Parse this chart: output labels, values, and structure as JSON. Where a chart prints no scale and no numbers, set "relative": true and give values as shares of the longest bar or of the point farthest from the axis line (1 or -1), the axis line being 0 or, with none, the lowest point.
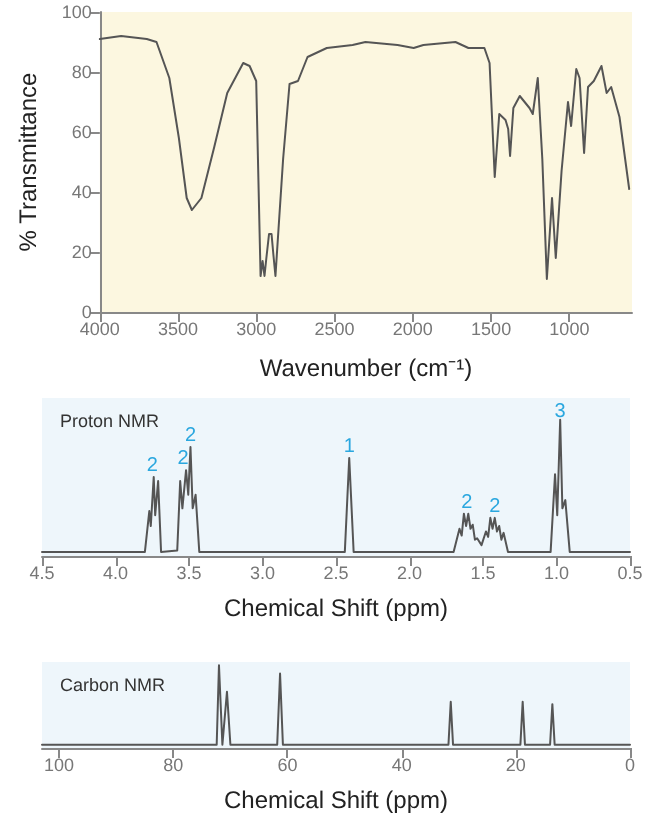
{
  "chart_data": [
    {
      "type": "line",
      "xlabel": "Wavenumber (cm⁻¹)",
      "ylabel": "% Transmittance",
      "xlim": [
        4000,
        600
      ],
      "xticks": [
        4000,
        3500,
        3000,
        2500,
        2000,
        1500,
        1000
      ],
      "ylim": [
        0,
        100
      ],
      "yticks": [
        0,
        20,
        40,
        60,
        80,
        100
      ],
      "grid": false,
      "marker": "none",
      "series": [
        {
          "color": "#555555",
          "x": [
            4000,
            3864,
            3700,
            3638,
            3556,
            3495,
            3445,
            3412,
            3351,
            3269,
            3186,
            3084,
            3043,
            3001,
            2973,
            2960,
            2948,
            2936,
            2919,
            2903,
            2891,
            2878,
            2858,
            2829,
            2788,
            2734,
            2673,
            2550,
            2385,
            2303,
            2098,
            1995,
            1933,
            1728,
            1645,
            1543,
            1510,
            1477,
            1448,
            1408,
            1391,
            1379,
            1358,
            1317,
            1255,
            1234,
            1202,
            1173,
            1144,
            1111,
            1087,
            1050,
            1009,
            989,
            956,
            935,
            906,
            881,
            844,
            795,
            762,
            733,
            680,
            618
          ],
          "values": [
            91,
            92,
            91,
            90,
            78,
            58,
            38,
            34,
            38,
            55,
            73,
            83,
            82,
            77,
            12,
            17,
            12,
            18,
            26,
            26,
            19,
            12,
            28,
            51,
            76,
            77,
            85,
            88,
            89,
            90,
            89,
            88,
            89,
            90,
            88,
            88,
            83,
            45,
            66,
            64,
            61,
            52,
            68,
            72,
            68,
            66,
            78,
            51,
            11,
            38,
            18,
            47,
            70,
            62,
            81,
            78,
            53,
            75,
            77,
            82,
            73,
            75,
            65,
            41
          ]
        }
      ]
    },
    {
      "type": "line",
      "title": "Proton NMR",
      "xlabel": "Chemical Shift (ppm)",
      "xlim": [
        4.5,
        0.5
      ],
      "xticks": [
        4.5,
        {
          "value": 4,
          "label": "4.0"
        },
        3.5,
        {
          "value": 3,
          "label": "3.0"
        },
        2.5,
        {
          "value": 2,
          "label": "2.0"
        },
        1.5,
        {
          "value": 1,
          "label": "1.0"
        },
        0.5
      ],
      "relative": true,
      "tick_labels": "x",
      "grid": false,
      "marker": "none",
      "annotations": [
        {
          "text": "2",
          "x": 3.75,
          "y": 0.66
        },
        {
          "text": "2",
          "x": 3.54,
          "y": 0.71
        },
        {
          "text": "2",
          "x": 3.49,
          "y": 0.88
        },
        {
          "text": "1",
          "x": 2.41,
          "y": 0.8
        },
        {
          "text": "2",
          "x": 1.61,
          "y": 0.39
        },
        {
          "text": "2",
          "x": 1.42,
          "y": 0.36
        },
        {
          "text": "3",
          "x": 0.975,
          "y": 1.06
        }
      ],
      "series": [
        {
          "color": "#555555",
          "x": [
            4.5,
            3.8,
            3.77,
            3.76,
            3.74,
            3.73,
            3.71,
            3.69,
            3.58,
            3.56,
            3.545,
            3.52,
            3.505,
            3.49,
            3.475,
            3.455,
            3.43,
            2.44,
            2.41,
            2.38,
            1.7,
            1.66,
            1.645,
            1.63,
            1.615,
            1.6,
            1.585,
            1.57,
            1.555,
            1.54,
            1.51,
            1.48,
            1.465,
            1.45,
            1.435,
            1.42,
            1.405,
            1.39,
            1.375,
            1.36,
            1.33,
            1.04,
            1.01,
            0.995,
            0.975,
            0.96,
            0.94,
            0.91,
            0.5
          ],
          "values": [
            0.03,
            0.03,
            0.33,
            0.22,
            0.58,
            0.3,
            0.55,
            0.03,
            0.04,
            0.55,
            0.35,
            0.63,
            0.45,
            0.8,
            0.35,
            0.45,
            0.03,
            0.03,
            0.72,
            0.03,
            0.03,
            0.2,
            0.15,
            0.31,
            0.22,
            0.31,
            0.2,
            0.23,
            0.12,
            0.13,
            0.08,
            0.18,
            0.14,
            0.28,
            0.2,
            0.28,
            0.18,
            0.22,
            0.12,
            0.17,
            0.03,
            0.03,
            0.6,
            0.3,
            1,
            0.35,
            0.41,
            0.03,
            0.03
          ]
        }
      ]
    },
    {
      "type": "line",
      "title": "Carbon NMR",
      "xlabel": "Chemical Shift (ppm)",
      "xlim": [
        103,
        0
      ],
      "xticks": [
        100,
        80,
        60,
        40,
        20,
        0
      ],
      "relative": true,
      "tick_labels": "x",
      "grid": false,
      "marker": "none",
      "series": [
        {
          "color": "#555555",
          "x": [
            103,
            72.4,
            72.0,
            71.4,
            70.6,
            70.0,
            61.8,
            61.3,
            60.8,
            31.8,
            31.4,
            31.0,
            19.2,
            18.8,
            18.4,
            14.0,
            13.6,
            13.2,
            0
          ],
          "values": [
            0.04,
            0.04,
            1,
            0.04,
            0.68,
            0.04,
            0.04,
            0.9,
            0.04,
            0.04,
            0.56,
            0.04,
            0.04,
            0.56,
            0.04,
            0.04,
            0.53,
            0.04,
            0.04
          ]
        }
      ]
    }
  ]
}
